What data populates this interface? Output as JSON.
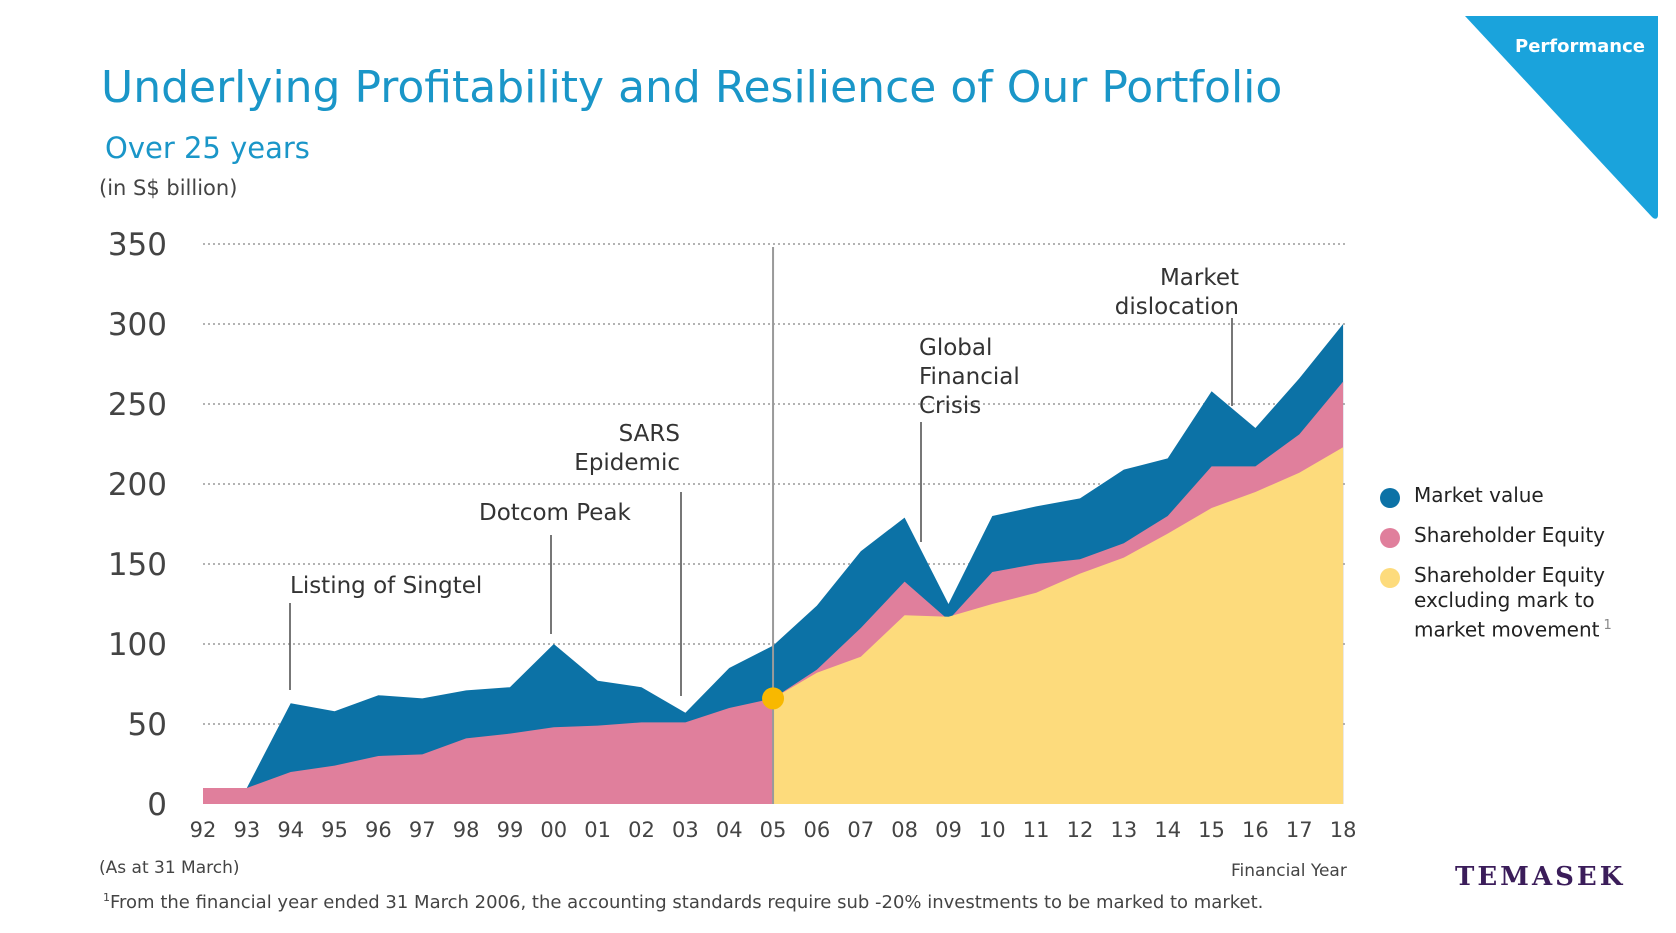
{
  "header": {
    "title": "Underlying Profitability and Resilience of Our Portfolio",
    "subtitle": "Over 25 years",
    "unit": "(in S$ billion)",
    "corner_label": "Performance"
  },
  "footer": {
    "as_at": "(As at 31 March)",
    "x_axis_label": "Financial Year",
    "footnote_mark": "1",
    "footnote": "From the financial year ended 31 March 2006, the accounting standards require sub -20% investments to be marked to market.",
    "brand": "TEMASEK"
  },
  "legend": {
    "items": [
      {
        "label": "Market value",
        "color": "#0c72a6"
      },
      {
        "label": "Shareholder Equity",
        "color": "#e07f9c"
      },
      {
        "label": "Shareholder Equity excluding mark to market movement",
        "color": "#fddb7c",
        "note": "1"
      }
    ]
  },
  "colors": {
    "corner": "#1aa3dc",
    "title": "#1a96c8",
    "market_value": "#0c72a6",
    "shareholder_equity": "#e07f9c",
    "equity_ex_mtm": "#fddb7c",
    "marker": "#f8b800",
    "grid": "#b3b3b3",
    "axis_text": "#444444"
  },
  "chart_data": {
    "type": "area",
    "x": [
      "92",
      "93",
      "94",
      "95",
      "96",
      "97",
      "98",
      "99",
      "00",
      "01",
      "02",
      "03",
      "04",
      "05",
      "06",
      "07",
      "08",
      "09",
      "10",
      "11",
      "12",
      "13",
      "14",
      "15",
      "16",
      "17",
      "18"
    ],
    "series": [
      {
        "name": "Market value",
        "values": [
          10,
          10,
          63,
          58,
          68,
          66,
          71,
          73,
          100,
          77,
          73,
          57,
          85,
          99,
          124,
          158,
          179,
          125,
          180,
          186,
          191,
          209,
          216,
          258,
          235,
          266,
          300
        ]
      },
      {
        "name": "Shareholder Equity",
        "values": [
          10,
          10,
          20,
          24,
          30,
          31,
          41,
          44,
          48,
          49,
          51,
          51,
          60,
          66,
          84,
          110,
          139,
          115,
          145,
          150,
          153,
          163,
          180,
          211,
          211,
          231,
          264
        ]
      },
      {
        "name": "Shareholder Equity excluding mark to market movement",
        "values": [
          null,
          null,
          null,
          null,
          null,
          null,
          null,
          null,
          null,
          null,
          null,
          null,
          null,
          66,
          82,
          92,
          118,
          117,
          125,
          132,
          144,
          154,
          169,
          185,
          195,
          207,
          223
        ]
      }
    ],
    "ylim": [
      0,
      350
    ],
    "yticks": [
      "0",
      "50",
      "100",
      "150",
      "200",
      "250",
      "300",
      "350"
    ],
    "grid": true,
    "legend_position": "right",
    "divider_at": "05",
    "marker": {
      "x": "05",
      "y": 66
    },
    "annotations": [
      {
        "lines": [
          "Listing of Singtel"
        ],
        "x": "94"
      },
      {
        "lines": [
          "Dotcom Peak"
        ],
        "x": "00"
      },
      {
        "lines": [
          "SARS",
          "Epidemic"
        ],
        "x": "03"
      },
      {
        "lines": [
          "Global",
          "Financial",
          "Crisis"
        ],
        "x": "08"
      },
      {
        "lines": [
          "Market",
          "dislocation"
        ],
        "x": "16"
      }
    ]
  }
}
